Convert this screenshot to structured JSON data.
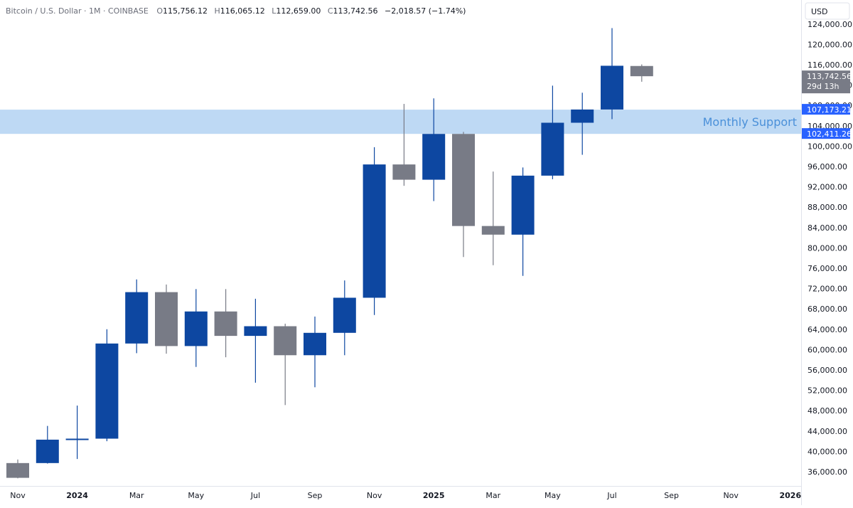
{
  "header": {
    "symbol": "Bitcoin / U.S. Dollar · 1M · COINBASE",
    "open_label": "O",
    "open": "115,756.12",
    "high_label": "H",
    "high": "116,065.12",
    "low_label": "L",
    "low": "112,659.00",
    "close_label": "C",
    "close": "113,742.56",
    "change": "−2,018.57 (−1.74%)"
  },
  "currency_button": "USD",
  "support_zone": {
    "label": "Monthly Support",
    "upper": "107,173.21",
    "lower": "102,411.26",
    "upper_value": 107173.21,
    "lower_value": 102411.26
  },
  "last_price": {
    "label": "113,742.56",
    "countdown": "29d 13h",
    "value": 113742.56
  },
  "colors": {
    "up": "#0D47A1",
    "down": "#787B86",
    "zone": "#BBD7F3",
    "zone_text": "#4A90D9",
    "label_blue": "#2962FF",
    "last_price_bg": "#787B86",
    "text": "#131722",
    "axis_text": "#131722",
    "header_text": "#6A6D78"
  },
  "chart_data": {
    "type": "candlestick",
    "ylim": [
      32000,
      126000
    ],
    "y_ticks": [
      "36,000.00",
      "40,000.00",
      "44,000.00",
      "48,000.00",
      "52,000.00",
      "56,000.00",
      "60,000.00",
      "64,000.00",
      "68,000.00",
      "72,000.00",
      "76,000.00",
      "80,000.00",
      "84,000.00",
      "88,000.00",
      "92,000.00",
      "96,000.00",
      "100,000.00",
      "104,000.00",
      "108,000.00",
      "112,000.00",
      "116,000.00",
      "120,000.00",
      "124,000.00"
    ],
    "y_tick_values": [
      36000,
      40000,
      44000,
      48000,
      52000,
      56000,
      60000,
      64000,
      68000,
      72000,
      76000,
      80000,
      84000,
      88000,
      92000,
      96000,
      100000,
      104000,
      108000,
      112000,
      116000,
      120000,
      124000
    ],
    "x_ticks": [
      {
        "label": "Nov",
        "index": 0,
        "bold": false
      },
      {
        "label": "2024",
        "index": 2,
        "bold": true
      },
      {
        "label": "Mar",
        "index": 4,
        "bold": false
      },
      {
        "label": "May",
        "index": 6,
        "bold": false
      },
      {
        "label": "Jul",
        "index": 8,
        "bold": false
      },
      {
        "label": "Sep",
        "index": 10,
        "bold": false
      },
      {
        "label": "Nov",
        "index": 12,
        "bold": false
      },
      {
        "label": "2025",
        "index": 14,
        "bold": true
      },
      {
        "label": "Mar",
        "index": 16,
        "bold": false
      },
      {
        "label": "May",
        "index": 18,
        "bold": false
      },
      {
        "label": "Jul",
        "index": 20,
        "bold": false
      },
      {
        "label": "Sep",
        "index": 22,
        "bold": false
      },
      {
        "label": "Nov",
        "index": 24,
        "bold": false
      },
      {
        "label": "2026",
        "index": 26,
        "bold": true
      }
    ],
    "candles": [
      {
        "month": "2023-11",
        "open": 37700,
        "high": 38400,
        "low": 34700,
        "close": 34800
      },
      {
        "month": "2023-12",
        "open": 37700,
        "high": 45000,
        "low": 37600,
        "close": 42300
      },
      {
        "month": "2024-01",
        "open": 42300,
        "high": 49000,
        "low": 38500,
        "close": 42500
      },
      {
        "month": "2024-02",
        "open": 42500,
        "high": 64000,
        "low": 42000,
        "close": 61200
      },
      {
        "month": "2024-03",
        "open": 61200,
        "high": 73800,
        "low": 59300,
        "close": 71300
      },
      {
        "month": "2024-04",
        "open": 71300,
        "high": 72800,
        "low": 59200,
        "close": 60700
      },
      {
        "month": "2024-05",
        "open": 60700,
        "high": 71900,
        "low": 56600,
        "close": 67500
      },
      {
        "month": "2024-06",
        "open": 67500,
        "high": 71900,
        "low": 58500,
        "close": 62700
      },
      {
        "month": "2024-07",
        "open": 62700,
        "high": 70000,
        "low": 53500,
        "close": 64600
      },
      {
        "month": "2024-08",
        "open": 64600,
        "high": 65100,
        "low": 49100,
        "close": 58900
      },
      {
        "month": "2024-09",
        "open": 58900,
        "high": 66500,
        "low": 52600,
        "close": 63300
      },
      {
        "month": "2024-10",
        "open": 63300,
        "high": 73600,
        "low": 58900,
        "close": 70200
      },
      {
        "month": "2024-11",
        "open": 70200,
        "high": 99800,
        "low": 66800,
        "close": 96400
      },
      {
        "month": "2024-12",
        "open": 96400,
        "high": 108300,
        "low": 92200,
        "close": 93400
      },
      {
        "month": "2025-01",
        "open": 93400,
        "high": 109400,
        "low": 89200,
        "close": 102400
      },
      {
        "month": "2025-02",
        "open": 102400,
        "high": 102800,
        "low": 78200,
        "close": 84300
      },
      {
        "month": "2025-03",
        "open": 84300,
        "high": 95000,
        "low": 76600,
        "close": 82600
      },
      {
        "month": "2025-04",
        "open": 82600,
        "high": 95800,
        "low": 74500,
        "close": 94200
      },
      {
        "month": "2025-05",
        "open": 94200,
        "high": 111900,
        "low": 93500,
        "close": 104600
      },
      {
        "month": "2025-06",
        "open": 104600,
        "high": 110500,
        "low": 98300,
        "close": 107200
      },
      {
        "month": "2025-07",
        "open": 107200,
        "high": 123200,
        "low": 105300,
        "close": 115800
      },
      {
        "month": "2025-08",
        "open": 115756.12,
        "high": 116065.12,
        "low": 112659.0,
        "close": 113742.56
      }
    ]
  }
}
